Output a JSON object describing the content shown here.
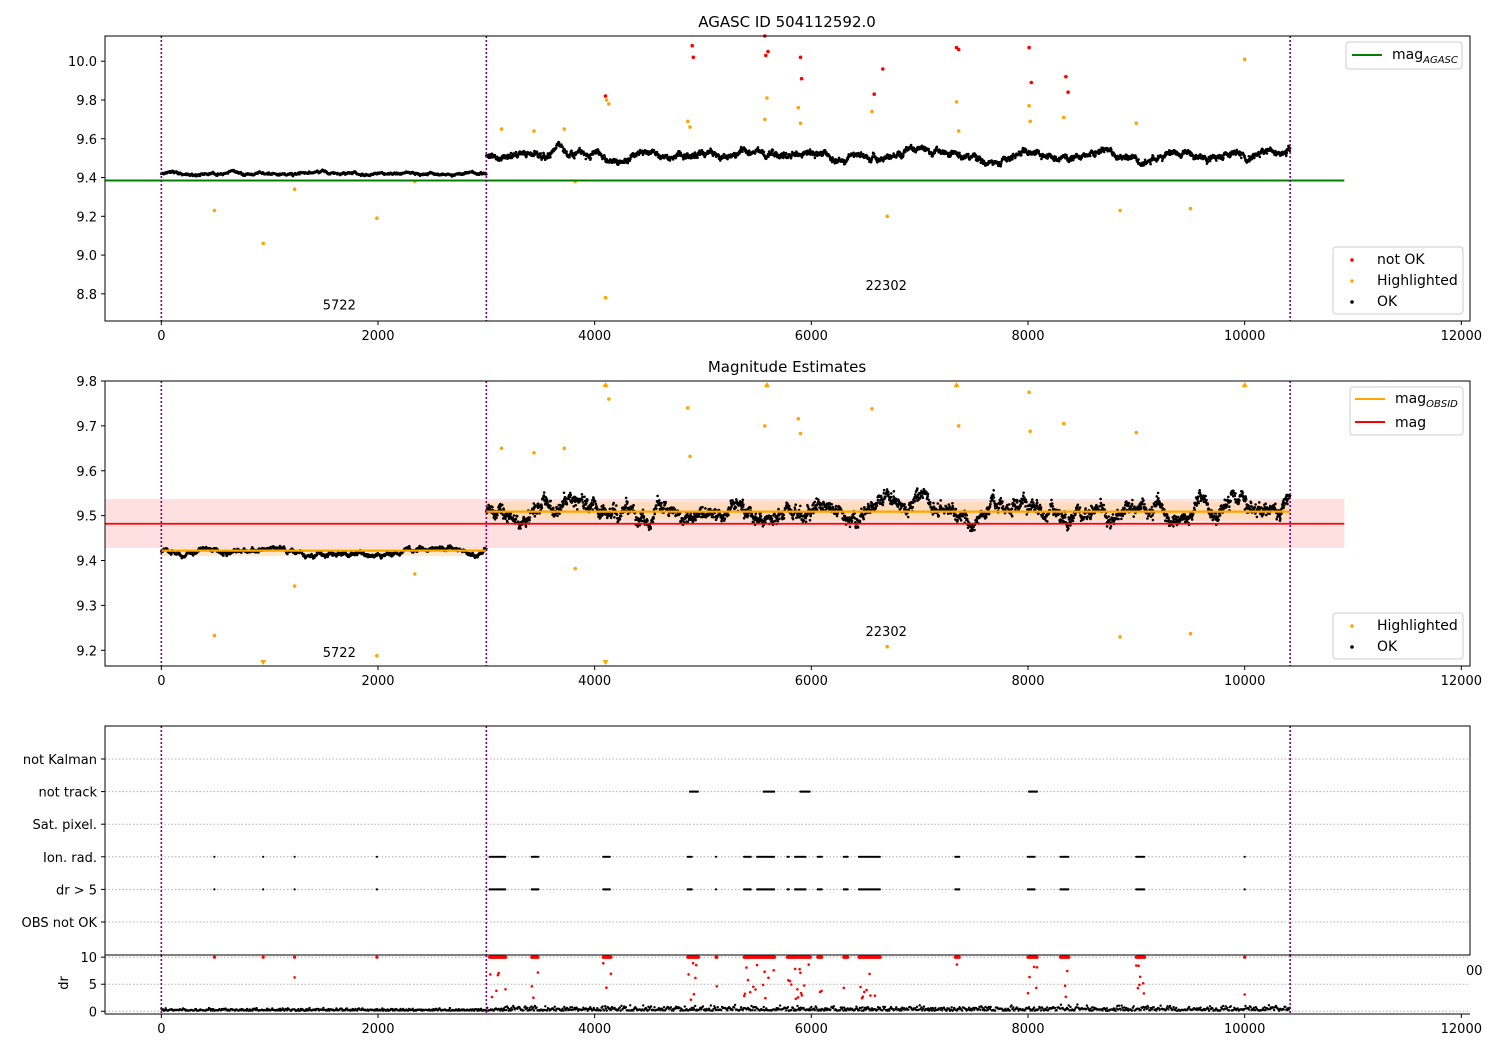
{
  "chart_data": [
    {
      "type": "scatter",
      "title": "AGASC ID 504112592.0",
      "xlabel": "",
      "ylabel": "",
      "xlim": [
        -520,
        12080
      ],
      "ylim": [
        8.66,
        10.13
      ],
      "x_ticks": [
        0,
        2000,
        4000,
        6000,
        8000,
        10000,
        12000
      ],
      "y_ticks": [
        8.8,
        9.0,
        9.2,
        9.4,
        9.6,
        9.8,
        10.0
      ],
      "y_tick_labels": [
        "8.8",
        "9.0",
        "9.2",
        "9.4",
        "9.6",
        "9.8",
        "10.0"
      ],
      "obsid_boundaries": [
        0,
        3000,
        10420
      ],
      "obsid_labels": [
        {
          "text": "5722",
          "x": 1490,
          "y": 8.72
        },
        {
          "text": "22302",
          "x": 6500,
          "y": 8.82
        }
      ],
      "lines": [
        {
          "name": "mag_AGASC",
          "label_main": "mag",
          "label_sub": "AGASC",
          "x": [
            -520,
            10920
          ],
          "y": [
            9.385,
            9.385
          ],
          "color": "#008000"
        }
      ],
      "series": [
        {
          "name": "not OK",
          "color": "#ff0000",
          "x": [
            4100,
            4900,
            4910,
            5570,
            5580,
            5600,
            5900,
            5910,
            6580,
            6660,
            7340,
            7360,
            8010,
            8030,
            8350,
            8370
          ],
          "y": [
            9.82,
            10.08,
            10.02,
            10.13,
            10.03,
            10.05,
            10.02,
            9.91,
            9.83,
            9.96,
            10.07,
            10.06,
            10.07,
            9.89,
            9.92,
            9.84
          ]
        },
        {
          "name": "Highlighted",
          "color": "#ffa500",
          "x": [
            490,
            940,
            1230,
            1990,
            2340,
            3140,
            3440,
            3720,
            3820,
            4100,
            4110,
            4130,
            4860,
            4880,
            5570,
            5590,
            5880,
            5900,
            6560,
            6700,
            7340,
            7360,
            8010,
            8020,
            8330,
            8850,
            9000,
            9500,
            10000
          ],
          "y": [
            9.23,
            9.06,
            9.34,
            9.19,
            9.38,
            9.65,
            9.64,
            9.65,
            9.38,
            8.78,
            9.8,
            9.78,
            9.69,
            9.66,
            9.7,
            9.81,
            9.76,
            9.68,
            9.74,
            9.2,
            9.79,
            9.64,
            9.77,
            9.69,
            9.71,
            9.23,
            9.68,
            9.24,
            10.01
          ]
        },
        {
          "name": "OK",
          "color": "#000000",
          "segments": [
            {
              "x_range": [
                0,
                3000
              ],
              "center": 9.42,
              "spread": 0.015
            },
            {
              "x_range": [
                3000,
                10420
              ],
              "center": 9.52,
              "spread": 0.04
            }
          ]
        }
      ],
      "legend": [
        {
          "position": "top-right",
          "entries": [
            "mag_AGASC"
          ]
        },
        {
          "position": "lower-right",
          "entries": [
            "not OK",
            "Highlighted",
            "OK"
          ]
        }
      ],
      "legend_labels": {
        "not_ok": "not OK",
        "highlighted": "Highlighted",
        "ok": "OK"
      }
    },
    {
      "type": "scatter",
      "title": "Magnitude Estimates",
      "xlabel": "",
      "ylabel": "",
      "xlim": [
        -520,
        12080
      ],
      "ylim": [
        9.165,
        9.8
      ],
      "x_ticks": [
        0,
        2000,
        4000,
        6000,
        8000,
        10000,
        12000
      ],
      "y_ticks": [
        9.2,
        9.3,
        9.4,
        9.5,
        9.6,
        9.7,
        9.8
      ],
      "y_tick_labels": [
        "9.2",
        "9.3",
        "9.4",
        "9.5",
        "9.6",
        "9.7",
        "9.8"
      ],
      "obsid_boundaries": [
        0,
        3000,
        10420
      ],
      "obsid_labels": [
        {
          "text": "5722",
          "x": 1490,
          "y": 9.185
        },
        {
          "text": "22302",
          "x": 6500,
          "y": 9.232
        }
      ],
      "bands": [
        {
          "x": [
            -520,
            10920
          ],
          "y": [
            9.428,
            9.537
          ],
          "color": "#ffcccc"
        },
        {
          "x": [
            3000,
            10420
          ],
          "y": [
            9.49,
            9.53
          ],
          "color": "#ffd9a8"
        },
        {
          "x": [
            0,
            3000
          ],
          "y": [
            9.41,
            9.43
          ],
          "color": "#ffd9a8"
        }
      ],
      "lines": [
        {
          "name": "mag_OBSID",
          "label_main": "mag",
          "label_sub": "OBSID",
          "segments": [
            {
              "x": [
                0,
                3000
              ],
              "y": 9.422
            },
            {
              "x": [
                3000,
                10420
              ],
              "y": 9.509
            }
          ],
          "color": "#ffa500"
        },
        {
          "name": "mag",
          "label_main": "mag",
          "label_sub": "",
          "x": [
            -520,
            10920
          ],
          "y": [
            9.482,
            9.482
          ],
          "color": "#ff0000"
        }
      ],
      "series": [
        {
          "name": "Highlighted",
          "color": "#ffa500",
          "x": [
            490,
            1230,
            1990,
            2340,
            3140,
            3440,
            3720,
            3820,
            4100,
            4130,
            4860,
            4880,
            5570,
            5590,
            5880,
            5900,
            6560,
            6700,
            7340,
            7360,
            8010,
            8020,
            8330,
            8850,
            9000,
            9500,
            10000
          ],
          "y": [
            9.233,
            9.343,
            9.188,
            9.37,
            9.65,
            9.64,
            9.65,
            9.382,
            9.79,
            9.76,
            9.74,
            9.632,
            9.7,
            9.79,
            9.716,
            9.683,
            9.738,
            9.208,
            9.79,
            9.7,
            9.775,
            9.688,
            9.705,
            9.23,
            9.685,
            9.237,
            9.79
          ]
        },
        {
          "name": "OK",
          "color": "#000000",
          "segments": [
            {
              "x_range": [
                0,
                3000
              ],
              "center": 9.42,
              "spread": 0.012
            },
            {
              "x_range": [
                3000,
                10420
              ],
              "center": 9.51,
              "spread": 0.04
            }
          ]
        }
      ],
      "clipped_markers": [
        {
          "x": 940,
          "direction": "down",
          "color": "#ffa500"
        },
        {
          "x": 4100,
          "direction": "down",
          "color": "#ffa500"
        },
        {
          "x": 4100,
          "direction": "up",
          "color": "#ffa500"
        },
        {
          "x": 5590,
          "direction": "up",
          "color": "#ffa500"
        },
        {
          "x": 7340,
          "direction": "up",
          "color": "#ffa500"
        },
        {
          "x": 10000,
          "direction": "up",
          "color": "#ffa500"
        }
      ],
      "legend": [
        {
          "position": "top-right",
          "entries": [
            "mag_OBSID",
            "mag"
          ]
        },
        {
          "position": "lower-right",
          "entries": [
            "Highlighted",
            "OK"
          ]
        }
      ],
      "legend_labels": {
        "highlighted": "Highlighted",
        "ok": "OK"
      }
    },
    {
      "type": "scatter",
      "title": "",
      "xlabel": "",
      "ylabel": "",
      "xlim": [
        -520,
        12080
      ],
      "categories": [
        "not Kalman",
        "not track",
        "Sat. pixel.",
        "Ion. rad.",
        "dr > 5",
        "OBS not OK"
      ],
      "obsid_boundaries": [
        0,
        3000,
        10420
      ],
      "flags": {
        "not Kalman": [],
        "not track": [
          [
            4880,
            4960
          ],
          [
            5560,
            5660
          ],
          [
            5900,
            5990
          ],
          [
            8010,
            8090
          ]
        ],
        "Sat. pixel.": [],
        "Ion. rad.": [
          [
            490,
            495
          ],
          [
            940,
            945
          ],
          [
            1230,
            1235
          ],
          [
            1990,
            1995
          ],
          [
            3030,
            3180
          ],
          [
            3420,
            3480
          ],
          [
            4080,
            4150
          ],
          [
            4860,
            4900
          ],
          [
            5120,
            5130
          ],
          [
            5380,
            5450
          ],
          [
            5500,
            5660
          ],
          [
            5780,
            5800
          ],
          [
            5850,
            5950
          ],
          [
            6060,
            6100
          ],
          [
            6300,
            6340
          ],
          [
            6440,
            6640
          ],
          [
            7330,
            7370
          ],
          [
            8000,
            8060
          ],
          [
            8300,
            8380
          ],
          [
            9000,
            9080
          ],
          [
            10000,
            10005
          ]
        ],
        "dr > 5": [
          [
            490,
            495
          ],
          [
            940,
            945
          ],
          [
            1230,
            1235
          ],
          [
            1990,
            1995
          ],
          [
            3030,
            3180
          ],
          [
            3420,
            3480
          ],
          [
            4080,
            4150
          ],
          [
            4860,
            4900
          ],
          [
            5120,
            5130
          ],
          [
            5380,
            5450
          ],
          [
            5500,
            5660
          ],
          [
            5780,
            5800
          ],
          [
            5850,
            5950
          ],
          [
            6060,
            6100
          ],
          [
            6300,
            6340
          ],
          [
            6440,
            6640
          ],
          [
            7330,
            7370
          ],
          [
            8000,
            8060
          ],
          [
            8300,
            8380
          ],
          [
            9000,
            9080
          ],
          [
            10000,
            10005
          ]
        ],
        "OBS not OK": []
      }
    },
    {
      "type": "scatter",
      "title": "",
      "xlabel": "",
      "ylabel": "dr",
      "xlim": [
        -520,
        12080
      ],
      "ylim": [
        -0.5,
        10.4
      ],
      "x_ticks": [
        0,
        2000,
        4000,
        6000,
        8000,
        10000,
        12000
      ],
      "y_ticks": [
        0,
        5,
        10
      ],
      "y_tick_labels": [
        "0",
        "5",
        "10"
      ],
      "x_tick_labels": [
        "0",
        "2000",
        "4000",
        "6000",
        "8000",
        "10000",
        "12000"
      ],
      "obsid_boundaries": [
        0,
        3000,
        10420
      ],
      "capped_value": 10,
      "capped_clusters": [
        [
          490,
          495
        ],
        [
          940,
          945
        ],
        [
          1230,
          1235
        ],
        [
          1990,
          1995
        ],
        [
          3030,
          3180
        ],
        [
          3420,
          3480
        ],
        [
          4080,
          4150
        ],
        [
          4860,
          4960
        ],
        [
          5120,
          5130
        ],
        [
          5380,
          5660
        ],
        [
          5780,
          5990
        ],
        [
          6060,
          6100
        ],
        [
          6300,
          6340
        ],
        [
          6440,
          6640
        ],
        [
          7330,
          7370
        ],
        [
          8000,
          8090
        ],
        [
          8300,
          8380
        ],
        [
          9000,
          9080
        ],
        [
          10000,
          10005
        ]
      ],
      "stray_label": "00"
    }
  ]
}
